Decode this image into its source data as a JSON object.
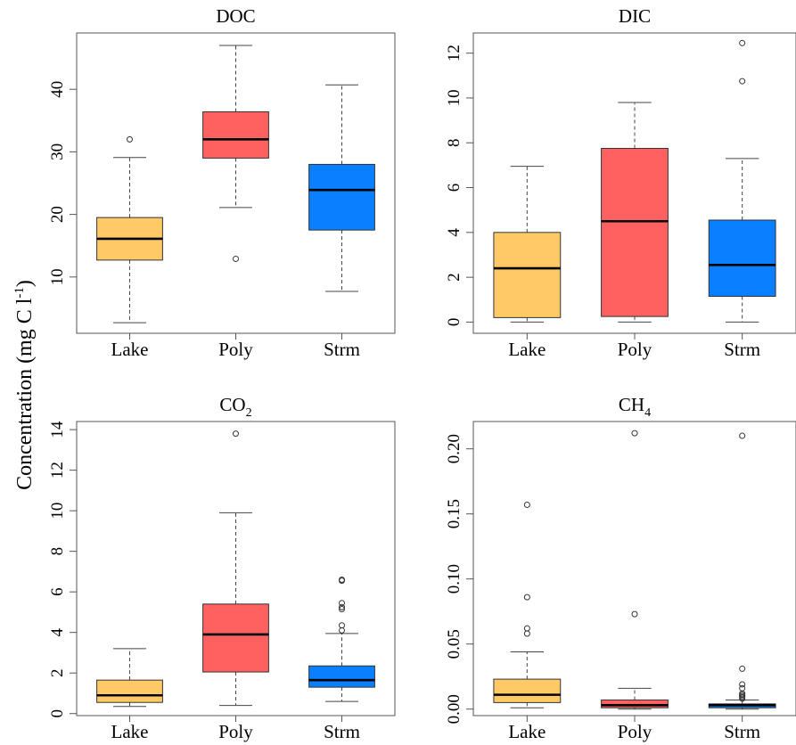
{
  "figure": {
    "ylabel": "Concentration (mg C l",
    "ylabel_sup": "-1",
    "ylabel_close": ")"
  },
  "colors": {
    "Lake": "#ffc966",
    "Poly": "#ff6161",
    "Strm": "#0a7fff"
  },
  "chart_data": [
    {
      "type": "boxplot",
      "title": "DOC",
      "title_sub": "",
      "categories": [
        "Lake",
        "Poly",
        "Strm"
      ],
      "yticks": [
        10,
        20,
        30,
        40
      ],
      "ytick_labels": [
        "10",
        "20",
        "30",
        "40"
      ],
      "ylim": [
        1,
        49
      ],
      "boxes": [
        {
          "name": "Lake",
          "whisker_low": 2.7,
          "q1": 12.7,
          "median": 16.1,
          "q3": 19.5,
          "whisker_high": 29.1,
          "outliers": [
            32.0
          ]
        },
        {
          "name": "Poly",
          "whisker_low": 21.1,
          "q1": 29.0,
          "median": 32.0,
          "q3": 36.4,
          "whisker_high": 47.0,
          "outliers": [
            12.9
          ]
        },
        {
          "name": "Strm",
          "whisker_low": 7.7,
          "q1": 17.5,
          "median": 23.9,
          "q3": 28.0,
          "whisker_high": 40.7,
          "outliers": []
        }
      ]
    },
    {
      "type": "boxplot",
      "title": "DIC",
      "title_sub": "",
      "categories": [
        "Lake",
        "Poly",
        "Strm"
      ],
      "yticks": [
        0,
        2,
        4,
        6,
        8,
        10,
        12
      ],
      "ytick_labels": [
        "0",
        "2",
        "4",
        "6",
        "8",
        "10",
        "12"
      ],
      "ylim": [
        -0.5,
        12.9
      ],
      "boxes": [
        {
          "name": "Lake",
          "whisker_low": 0.0,
          "q1": 0.2,
          "median": 2.4,
          "q3": 4.0,
          "whisker_high": 6.95,
          "outliers": []
        },
        {
          "name": "Poly",
          "whisker_low": 0.0,
          "q1": 0.25,
          "median": 4.5,
          "q3": 7.75,
          "whisker_high": 9.8,
          "outliers": []
        },
        {
          "name": "Strm",
          "whisker_low": 0.0,
          "q1": 1.15,
          "median": 2.55,
          "q3": 4.55,
          "whisker_high": 7.3,
          "outliers": [
            10.75,
            12.45
          ]
        }
      ]
    },
    {
      "type": "boxplot",
      "title": "CO",
      "title_sub": "2",
      "categories": [
        "Lake",
        "Poly",
        "Strm"
      ],
      "yticks": [
        0,
        2,
        4,
        6,
        8,
        10,
        12,
        14
      ],
      "ytick_labels": [
        "0",
        "2",
        "4",
        "6",
        "8",
        "10",
        "12",
        "14"
      ],
      "ylim": [
        -0.1,
        14.4
      ],
      "boxes": [
        {
          "name": "Lake",
          "whisker_low": 0.35,
          "q1": 0.55,
          "median": 0.9,
          "q3": 1.65,
          "whisker_high": 3.2,
          "outliers": []
        },
        {
          "name": "Poly",
          "whisker_low": 0.4,
          "q1": 2.05,
          "median": 3.9,
          "q3": 5.4,
          "whisker_high": 9.9,
          "outliers": [
            13.8
          ]
        },
        {
          "name": "Strm",
          "whisker_low": 0.6,
          "q1": 1.3,
          "median": 1.65,
          "q3": 2.35,
          "whisker_high": 3.95,
          "outliers": [
            4.1,
            4.35,
            5.15,
            5.25,
            5.45,
            6.55,
            6.6
          ]
        }
      ]
    },
    {
      "type": "boxplot",
      "title": "CH",
      "title_sub": "4",
      "categories": [
        "Lake",
        "Poly",
        "Strm"
      ],
      "yticks": [
        0,
        0.05,
        0.1,
        0.15,
        0.2
      ],
      "ytick_labels": [
        "0.00",
        "0.05",
        "0.10",
        "0.15",
        "0.20"
      ],
      "ylim": [
        -0.005,
        0.221
      ],
      "boxes": [
        {
          "name": "Lake",
          "whisker_low": 0.001,
          "q1": 0.005,
          "median": 0.011,
          "q3": 0.023,
          "whisker_high": 0.044,
          "outliers": [
            0.058,
            0.062,
            0.086,
            0.157
          ]
        },
        {
          "name": "Poly",
          "whisker_low": 0.0,
          "q1": 0.001,
          "median": 0.003,
          "q3": 0.007,
          "whisker_high": 0.016,
          "outliers": [
            0.073,
            0.212
          ]
        },
        {
          "name": "Strm",
          "whisker_low": 0.0,
          "q1": 0.001,
          "median": 0.003,
          "q3": 0.004,
          "whisker_high": 0.007,
          "outliers": [
            0.008,
            0.009,
            0.01,
            0.011,
            0.012,
            0.016,
            0.019,
            0.031,
            0.21
          ]
        }
      ]
    }
  ]
}
